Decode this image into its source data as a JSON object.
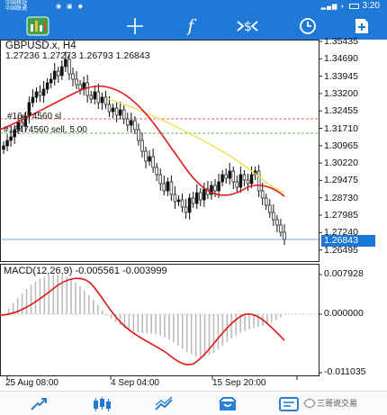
{
  "status_bar": {
    "carrier_line1": "中国移动",
    "carrier_line2": "中国联通",
    "time": "3:20",
    "battery": "▮"
  },
  "toolbar": {
    "crosshair": "crosshair-icon",
    "indicators": "function-icon",
    "objects": "objects-icon",
    "period": "clock-icon",
    "new_order": "new-order-icon"
  },
  "chart": {
    "symbol_label": "GBPUSD.x, H4",
    "ohlc_label": "1.27236 1.27273 1.26793 1.26843",
    "order_line_1": "#16474560 sl",
    "order_line_2": "#16474560 sell, 5.00",
    "current_price": "1.26843",
    "price_axis": [
      "1.35435",
      "1.34690",
      "1.33945",
      "1.33200",
      "1.32455",
      "1.31710",
      "1.30965",
      "1.30220",
      "1.29475",
      "1.28730",
      "1.27985",
      "1.27240",
      "1.26495"
    ],
    "macd_label": "MACD(12,26,9) -0.005561 -0.003999",
    "macd_axis": [
      "0.007928",
      "0.000000",
      "-0.011035"
    ],
    "date_axis": [
      "25 Aug 08:00",
      "4 Sep 04:00",
      "15 Sep 20:00"
    ],
    "colors": {
      "up_down": "#111111",
      "ma_slow": "#f0e050",
      "ma_fast": "#e01818",
      "macd_signal": "#e01818",
      "accent": "#1e7ad6"
    }
  },
  "bottom_nav": {
    "items": [
      "quotes-icon",
      "chart-icon",
      "trade-icon",
      "history-icon",
      "messages-icon"
    ],
    "watermark": "三哥说交易"
  }
}
